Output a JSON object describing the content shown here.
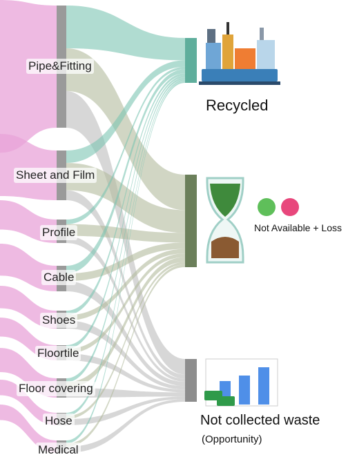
{
  "sources": [
    {
      "label": "Pipe&Fitting"
    },
    {
      "label": "Sheet and Film"
    },
    {
      "label": "Profile"
    },
    {
      "label": "Cable"
    },
    {
      "label": "Shoes"
    },
    {
      "label": "Floortile"
    },
    {
      "label": "Floor covering"
    },
    {
      "label": "Hose"
    },
    {
      "label": "Medical"
    }
  ],
  "targets": [
    {
      "label": "Recycled"
    },
    {
      "label": "Not Available + Loss"
    },
    {
      "label": "Not collected waste",
      "sublabel": "(Opportunity)"
    }
  ]
}
